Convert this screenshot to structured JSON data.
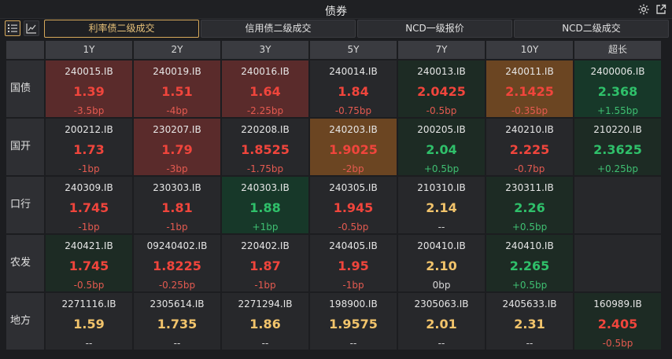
{
  "window": {
    "title": "债券"
  },
  "icons": {
    "settings": "gear-icon",
    "popout": "external-link-icon",
    "list_view": "list-icon",
    "chart_view": "line-chart-icon"
  },
  "tabs": [
    {
      "label": "利率债二级成交",
      "active": true
    },
    {
      "label": "信用债二级成交",
      "active": false
    },
    {
      "label": "NCD一级报价",
      "active": false
    },
    {
      "label": "NCD二级成交",
      "active": false
    }
  ],
  "columns": [
    "1Y",
    "2Y",
    "3Y",
    "5Y",
    "7Y",
    "10Y",
    "超长"
  ],
  "rows": [
    {
      "label": "国债",
      "cells": [
        {
          "code": "240015.IB",
          "yield": "1.39",
          "change": "-3.5bp",
          "bg": "red",
          "yc": "red",
          "cc": "red"
        },
        {
          "code": "240019.IB",
          "yield": "1.51",
          "change": "-4bp",
          "bg": "red",
          "yc": "red",
          "cc": "red"
        },
        {
          "code": "240016.IB",
          "yield": "1.64",
          "change": "-2.25bp",
          "bg": "red",
          "yc": "red",
          "cc": "red"
        },
        {
          "code": "240014.IB",
          "yield": "1.84",
          "change": "-0.75bp",
          "bg": "neutral",
          "yc": "red",
          "cc": "red"
        },
        {
          "code": "240013.IB",
          "yield": "2.0425",
          "change": "-0.5bp",
          "bg": "dgreen",
          "yc": "red",
          "cc": "red"
        },
        {
          "code": "240011.IB",
          "yield": "2.1425",
          "change": "-0.35bp",
          "bg": "orange",
          "yc": "red",
          "cc": "red"
        },
        {
          "code": "2400006.IB",
          "yield": "2.368",
          "change": "+1.55bp",
          "bg": "green",
          "yc": "green",
          "cc": "green"
        }
      ]
    },
    {
      "label": "国开",
      "cells": [
        {
          "code": "200212.IB",
          "yield": "1.73",
          "change": "-1bp",
          "bg": "neutral",
          "yc": "red",
          "cc": "red"
        },
        {
          "code": "230207.IB",
          "yield": "1.79",
          "change": "-3bp",
          "bg": "red",
          "yc": "red",
          "cc": "red"
        },
        {
          "code": "220208.IB",
          "yield": "1.8525",
          "change": "-1.75bp",
          "bg": "neutral",
          "yc": "red",
          "cc": "red"
        },
        {
          "code": "240203.IB",
          "yield": "1.9025",
          "change": "-2bp",
          "bg": "orange",
          "yc": "red",
          "cc": "red"
        },
        {
          "code": "200205.IB",
          "yield": "2.04",
          "change": "+0.5bp",
          "bg": "dgreen",
          "yc": "green",
          "cc": "green"
        },
        {
          "code": "240210.IB",
          "yield": "2.225",
          "change": "-0.7bp",
          "bg": "neutral",
          "yc": "red",
          "cc": "red"
        },
        {
          "code": "210220.IB",
          "yield": "2.3625",
          "change": "+0.25bp",
          "bg": "dgreen",
          "yc": "green",
          "cc": "green"
        }
      ]
    },
    {
      "label": "口行",
      "cells": [
        {
          "code": "240309.IB",
          "yield": "1.745",
          "change": "-1bp",
          "bg": "neutral",
          "yc": "red",
          "cc": "red"
        },
        {
          "code": "230303.IB",
          "yield": "1.81",
          "change": "-1bp",
          "bg": "neutral",
          "yc": "red",
          "cc": "red"
        },
        {
          "code": "240303.IB",
          "yield": "1.88",
          "change": "+1bp",
          "bg": "green",
          "yc": "green",
          "cc": "green"
        },
        {
          "code": "240305.IB",
          "yield": "1.945",
          "change": "-0.5bp",
          "bg": "neutral",
          "yc": "red",
          "cc": "red"
        },
        {
          "code": "210310.IB",
          "yield": "2.14",
          "change": "--",
          "bg": "neutral",
          "yc": "yellow",
          "cc": "white"
        },
        {
          "code": "230311.IB",
          "yield": "2.26",
          "change": "+0.5bp",
          "bg": "dgreen",
          "yc": "green",
          "cc": "green"
        },
        {
          "code": "",
          "yield": "",
          "change": "",
          "bg": "empty",
          "yc": "white",
          "cc": "white"
        }
      ]
    },
    {
      "label": "农发",
      "cells": [
        {
          "code": "240421.IB",
          "yield": "1.745",
          "change": "-0.5bp",
          "bg": "dgreen",
          "yc": "red",
          "cc": "red"
        },
        {
          "code": "09240402.IB",
          "yield": "1.8225",
          "change": "-0.25bp",
          "bg": "neutral",
          "yc": "red",
          "cc": "red"
        },
        {
          "code": "220402.IB",
          "yield": "1.87",
          "change": "-1bp",
          "bg": "neutral",
          "yc": "red",
          "cc": "red"
        },
        {
          "code": "240405.IB",
          "yield": "1.95",
          "change": "-1bp",
          "bg": "neutral",
          "yc": "red",
          "cc": "red"
        },
        {
          "code": "200410.IB",
          "yield": "2.10",
          "change": "0bp",
          "bg": "neutral",
          "yc": "yellow",
          "cc": "white"
        },
        {
          "code": "240410.IB",
          "yield": "2.265",
          "change": "+0.5bp",
          "bg": "dgreen",
          "yc": "green",
          "cc": "green"
        },
        {
          "code": "",
          "yield": "",
          "change": "",
          "bg": "empty",
          "yc": "white",
          "cc": "white"
        }
      ]
    },
    {
      "label": "地方",
      "cells": [
        {
          "code": "2271116.IB",
          "yield": "1.59",
          "change": "--",
          "bg": "neutral",
          "yc": "yellow",
          "cc": "white"
        },
        {
          "code": "2305614.IB",
          "yield": "1.735",
          "change": "--",
          "bg": "neutral",
          "yc": "yellow",
          "cc": "white"
        },
        {
          "code": "2271294.IB",
          "yield": "1.86",
          "change": "--",
          "bg": "neutral",
          "yc": "yellow",
          "cc": "white"
        },
        {
          "code": "198900.IB",
          "yield": "1.9575",
          "change": "--",
          "bg": "neutral",
          "yc": "yellow",
          "cc": "white"
        },
        {
          "code": "2305063.IB",
          "yield": "2.01",
          "change": "--",
          "bg": "neutral",
          "yc": "yellow",
          "cc": "white"
        },
        {
          "code": "2405633.IB",
          "yield": "2.31",
          "change": "--",
          "bg": "neutral",
          "yc": "yellow",
          "cc": "white"
        },
        {
          "code": "160989.IB",
          "yield": "2.405",
          "change": "-0.5bp",
          "bg": "dgreen",
          "yc": "red",
          "cc": "red"
        }
      ]
    }
  ]
}
